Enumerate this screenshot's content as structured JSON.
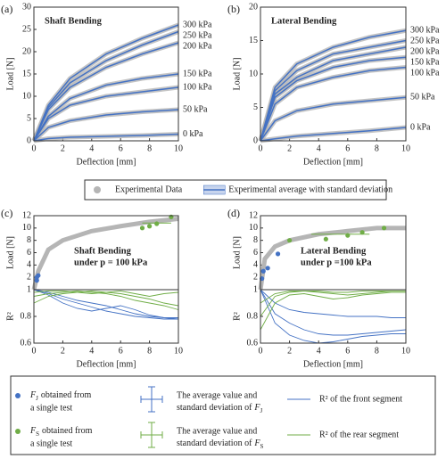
{
  "chart_data": [
    {
      "type": "line",
      "label": "(a)",
      "title": "Shaft Bending",
      "xlabel": "Deflection [mm]",
      "ylabel": "Load [N]",
      "experimental_color": "#b5b5b5",
      "x": [
        0,
        1,
        2.5,
        5,
        7.5,
        10
      ],
      "xlim": [
        0,
        10
      ],
      "xticks": [
        0,
        2,
        4,
        6,
        8,
        10
      ],
      "ylim": [
        0,
        30
      ],
      "yticks": [
        0,
        5,
        10,
        15,
        20,
        25,
        30
      ],
      "series": [
        {
          "name": "300 kPa",
          "color": "#4472c4",
          "values": [
            0,
            8,
            14,
            19.5,
            23,
            26
          ],
          "errors": [
            null,
            null,
            1.5,
            2,
            2,
            null
          ]
        },
        {
          "name": "250 kPa",
          "color": "#4472c4",
          "values": [
            0,
            7.5,
            13,
            18,
            21.5,
            24.5
          ],
          "errors": [
            null,
            null,
            1.5,
            1.5,
            1.5,
            null
          ]
        },
        {
          "name": "200 kPa",
          "color": "#4472c4",
          "values": [
            0,
            7,
            12,
            16.5,
            19.5,
            22
          ],
          "errors": [
            null,
            null,
            1,
            1,
            1,
            null
          ]
        },
        {
          "name": "150 kPa",
          "color": "#4472c4",
          "values": [
            0,
            5.5,
            9.5,
            12.5,
            14,
            15
          ]
        },
        {
          "name": "100 kPa",
          "color": "#4472c4",
          "values": [
            0,
            5,
            8,
            10,
            11,
            12
          ]
        },
        {
          "name": "50 kPa",
          "color": "#4472c4",
          "values": [
            0,
            3,
            4.5,
            5.8,
            6.5,
            7
          ]
        },
        {
          "name": "0 kPa",
          "color": "#4472c4",
          "values": [
            0,
            0.5,
            0.8,
            1,
            1.2,
            1.5
          ]
        }
      ]
    },
    {
      "type": "line",
      "label": "(b)",
      "title": "Lateral Bending",
      "xlabel": "Deflection [mm]",
      "ylabel": "Load [N]",
      "experimental_color": "#b5b5b5",
      "x": [
        0,
        1,
        2.5,
        5,
        7.5,
        10
      ],
      "xlim": [
        0,
        10
      ],
      "xticks": [
        0,
        2,
        4,
        6,
        8,
        10
      ],
      "ylim": [
        0,
        20
      ],
      "yticks": [
        0,
        5,
        10,
        15,
        20
      ],
      "series": [
        {
          "name": "300 kPa",
          "color": "#4472c4",
          "values": [
            0,
            8,
            11.5,
            14,
            15.5,
            16.5
          ],
          "errors": [
            null,
            null,
            1.5,
            3,
            3.5,
            null
          ]
        },
        {
          "name": "250 kPa",
          "color": "#4472c4",
          "values": [
            0,
            7.5,
            10.5,
            13,
            14,
            15
          ],
          "errors": [
            null,
            null,
            1.5,
            2,
            3,
            null
          ]
        },
        {
          "name": "200 kPa",
          "color": "#4472c4",
          "values": [
            0,
            7,
            9.5,
            12,
            13,
            14
          ],
          "errors": [
            null,
            null,
            1,
            1.5,
            2,
            null
          ]
        },
        {
          "name": "150 kPa",
          "color": "#4472c4",
          "values": [
            0,
            6.5,
            9,
            11,
            12,
            12.5
          ],
          "errors": [
            null,
            null,
            1,
            1,
            1.5,
            null
          ]
        },
        {
          "name": "100 kPa",
          "color": "#4472c4",
          "values": [
            0,
            5.5,
            8,
            9.5,
            10.5,
            11
          ]
        },
        {
          "name": "50 kPa",
          "color": "#4472c4",
          "values": [
            0,
            3,
            4.5,
            5.5,
            6,
            6.5
          ]
        },
        {
          "name": "0 kPa",
          "color": "#4472c4",
          "values": [
            0,
            0.3,
            0.7,
            1.1,
            1.5,
            2
          ]
        }
      ]
    },
    {
      "type": "stacked",
      "label": "(c)",
      "title": "Shaft Bending",
      "subtitle": "under p = 100 kPa",
      "xlabel": "Deflection [mm]",
      "xlim": [
        0,
        10
      ],
      "xticks": [
        0,
        2,
        4,
        6,
        8,
        10
      ],
      "load": {
        "ylabel": "Load [N]",
        "ylim": [
          0,
          12
        ],
        "yticks": [
          2,
          4,
          6,
          8,
          10,
          12
        ],
        "experimental": {
          "color": "#b5b5b5",
          "x": [
            0,
            0.3,
            1,
            2,
            4,
            6,
            8,
            10
          ],
          "values": [
            0,
            3,
            6.5,
            8,
            9.5,
            10.3,
            11,
            11.5
          ]
        },
        "fj": {
          "color": "#4472c4",
          "x": [
            0.2,
            0.2,
            0.3
          ],
          "values": [
            1.5,
            2,
            2.3
          ]
        },
        "fj_avg": {
          "color": "#4472c4",
          "x": 0.2,
          "value": 1.9,
          "error": 0.4
        },
        "fs": {
          "color": "#70ad47",
          "x": [
            7.5,
            8,
            8.5,
            9.5
          ],
          "values": [
            10,
            10.3,
            10.7,
            11.8
          ]
        },
        "fs_avg": {
          "color": "#70ad47",
          "x": 8.5,
          "value": 10.8,
          "error": 0.8,
          "xerror": 1
        }
      },
      "r2": {
        "ylabel": "R²",
        "ylim": [
          0.6,
          1
        ],
        "yticks": [
          0.6,
          0.8,
          1
        ],
        "x": [
          0,
          1,
          2,
          3,
          4,
          5,
          6,
          7,
          8,
          9,
          10
        ],
        "series": [
          {
            "color": "#4472c4",
            "values": [
              1,
              0.97,
              0.93,
              0.9,
              0.87,
              0.84,
              0.82,
              0.8,
              0.79,
              0.78,
              0.78
            ]
          },
          {
            "color": "#4472c4",
            "values": [
              1,
              0.98,
              0.95,
              0.92,
              0.9,
              0.88,
              0.85,
              0.82,
              0.8,
              0.79,
              0.79
            ]
          },
          {
            "color": "#4472c4",
            "values": [
              1,
              0.96,
              0.9,
              0.86,
              0.84,
              0.86,
              0.88,
              0.85,
              0.81,
              0.79,
              0.78
            ]
          },
          {
            "color": "#70ad47",
            "values": [
              0.95,
              0.97,
              0.98,
              0.99,
              0.98,
              0.97,
              0.95,
              0.92,
              0.9,
              0.88,
              0.85
            ]
          },
          {
            "color": "#70ad47",
            "values": [
              0.9,
              0.95,
              0.97,
              0.98,
              0.99,
              0.98,
              0.97,
              0.95,
              0.93,
              0.9,
              0.88
            ]
          },
          {
            "color": "#70ad47",
            "values": [
              0.98,
              0.99,
              0.99,
              0.98,
              0.97,
              0.98,
              0.99,
              0.97,
              0.95,
              0.97,
              0.98
            ]
          }
        ]
      }
    },
    {
      "type": "stacked",
      "label": "(d)",
      "title": "Lateral Bending",
      "subtitle": "under p =100 kPa",
      "xlabel": "Deflection [mm]",
      "xlim": [
        0,
        10
      ],
      "xticks": [
        0,
        2,
        4,
        6,
        8,
        10
      ],
      "load": {
        "ylabel": "Load [N]",
        "ylim": [
          0,
          12
        ],
        "yticks": [
          2,
          4,
          6,
          8,
          10,
          12
        ],
        "experimental": {
          "color": "#b5b5b5",
          "x": [
            0,
            0.3,
            1,
            2,
            4,
            6,
            8,
            10
          ],
          "values": [
            0,
            5,
            7,
            8,
            9,
            9.5,
            10,
            10
          ]
        },
        "fj": {
          "color": "#4472c4",
          "x": [
            0.1,
            0.2,
            0.5,
            1.2
          ],
          "values": [
            1.8,
            3,
            3.5,
            5.8
          ]
        },
        "fj_avg": {
          "color": "#4472c4",
          "x": 0.3,
          "value": 3.5,
          "error": 1.5
        },
        "fs": {
          "color": "#70ad47",
          "x": [
            2,
            4.5,
            6,
            7,
            8.5
          ],
          "values": [
            8,
            8.2,
            8.8,
            9.3,
            10
          ]
        },
        "fs_avg": {
          "color": "#70ad47",
          "x": 5.5,
          "value": 9,
          "error": 0.8,
          "xerror": 2
        }
      },
      "r2": {
        "ylabel": "R²",
        "ylim": [
          0.6,
          1
        ],
        "yticks": [
          0.6,
          0.8,
          1
        ],
        "x": [
          0,
          1,
          2,
          3,
          4,
          5,
          6,
          7,
          8,
          9,
          10
        ],
        "series": [
          {
            "color": "#4472c4",
            "values": [
              1,
              0.82,
              0.75,
              0.7,
              0.67,
              0.66,
              0.66,
              0.67,
              0.68,
              0.69,
              0.7
            ]
          },
          {
            "color": "#4472c4",
            "values": [
              1,
              0.75,
              0.66,
              0.62,
              0.6,
              0.61,
              0.63,
              0.65,
              0.66,
              0.67,
              0.67
            ]
          },
          {
            "color": "#4472c4",
            "values": [
              1,
              0.9,
              0.85,
              0.83,
              0.82,
              0.81,
              0.8,
              0.8,
              0.8,
              0.79,
              0.79
            ]
          },
          {
            "color": "#70ad47",
            "values": [
              0.8,
              0.95,
              0.98,
              0.99,
              0.98,
              0.97,
              0.96,
              0.97,
              0.98,
              0.99,
              0.99
            ]
          },
          {
            "color": "#70ad47",
            "values": [
              0.7,
              0.9,
              0.96,
              0.97,
              0.95,
              0.93,
              0.94,
              0.96,
              0.97,
              0.98,
              0.98
            ]
          },
          {
            "color": "#70ad47",
            "values": [
              0.9,
              0.97,
              0.99,
              0.99,
              0.99,
              0.98,
              0.98,
              0.99,
              0.99,
              0.99,
              0.99
            ]
          }
        ]
      }
    }
  ],
  "legend_top": {
    "items": [
      {
        "marker": "dot",
        "color": "#b5b5b5",
        "name": "Experimental Data"
      },
      {
        "marker": "band",
        "color": "#4472c4",
        "name": "Experimental average with standard deviation"
      }
    ]
  },
  "legend_bottom": {
    "items": [
      {
        "marker": "dot",
        "color": "#4472c4",
        "symbol": "F",
        "subscript": "J",
        "line1": "obtained from",
        "line2": "a single test"
      },
      {
        "marker": "errorbar",
        "color": "#4472c4",
        "line1": "The average value and",
        "line2": "standard deviation of",
        "symbol": "F",
        "subscript": "J"
      },
      {
        "marker": "line",
        "color": "#4472c4",
        "line1": "R² of the front segment"
      },
      {
        "marker": "dot",
        "color": "#70ad47",
        "symbol": "F",
        "subscript": "S",
        "line1": "obtained from",
        "line2": "a single test"
      },
      {
        "marker": "errorbar",
        "color": "#70ad47",
        "line1": "The average value and",
        "line2": "standard deviation of",
        "symbol": "F",
        "subscript": "S"
      },
      {
        "marker": "line",
        "color": "#70ad47",
        "line1": "R² of the rear segment"
      }
    ]
  }
}
